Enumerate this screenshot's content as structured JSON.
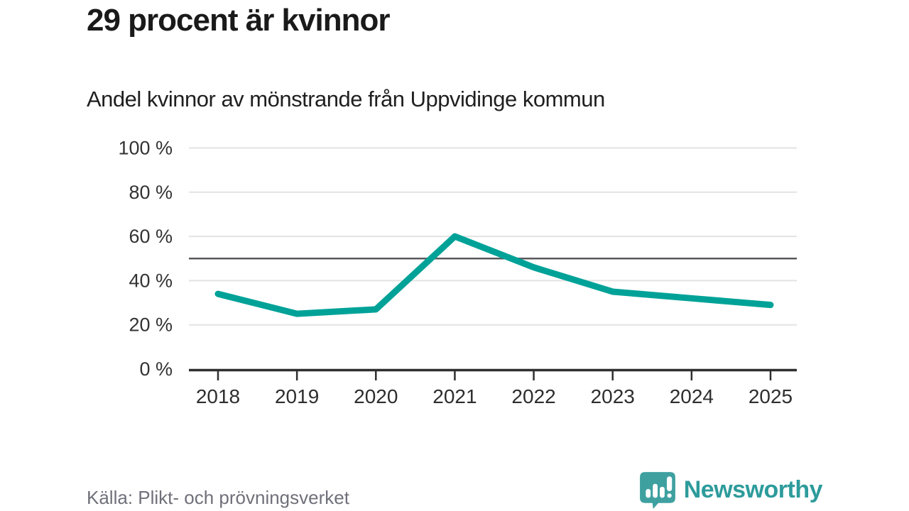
{
  "page": {
    "title": "29 procent är kvinnor",
    "subtitle": "Andel kvinnor av mönstrande från Uppvidinge kommun",
    "source": "Källa: Plikt- och prövningsverket"
  },
  "chart_data": {
    "type": "line",
    "title": "29 procent är kvinnor",
    "subtitle": "Andel kvinnor av mönstrande från Uppvidinge kommun",
    "x": [
      2018,
      2019,
      2020,
      2021,
      2022,
      2023,
      2024,
      2025
    ],
    "x_tick_labels": [
      "2018",
      "2019",
      "2020",
      "2021",
      "2022",
      "2023",
      "2024",
      "2025"
    ],
    "series": [
      {
        "name": "Andel kvinnor av mönstrande",
        "values": [
          34,
          25,
          27,
          60,
          46,
          35,
          32,
          29
        ]
      }
    ],
    "unit": "%",
    "ylim": [
      0,
      100
    ],
    "y_ticks": [
      100,
      80,
      60,
      40,
      20,
      0
    ],
    "y_tick_labels": [
      "100 %",
      "80 %",
      "60 %",
      "40 %",
      "20 %",
      "0 %"
    ],
    "reference_line": 50,
    "grid": true,
    "legend": false,
    "line_color": "#00a298",
    "grid_color": "#e3e3e3",
    "reference_line_color": "#58595c",
    "axis_color": "#2f2f2f"
  },
  "branding": {
    "logo_text": "Newsworthy",
    "logo_color": "#2d9b9b",
    "logo_icon": "speech-bubble-bar-chart-icon",
    "logo_icon_color": "#3fa0a0"
  }
}
